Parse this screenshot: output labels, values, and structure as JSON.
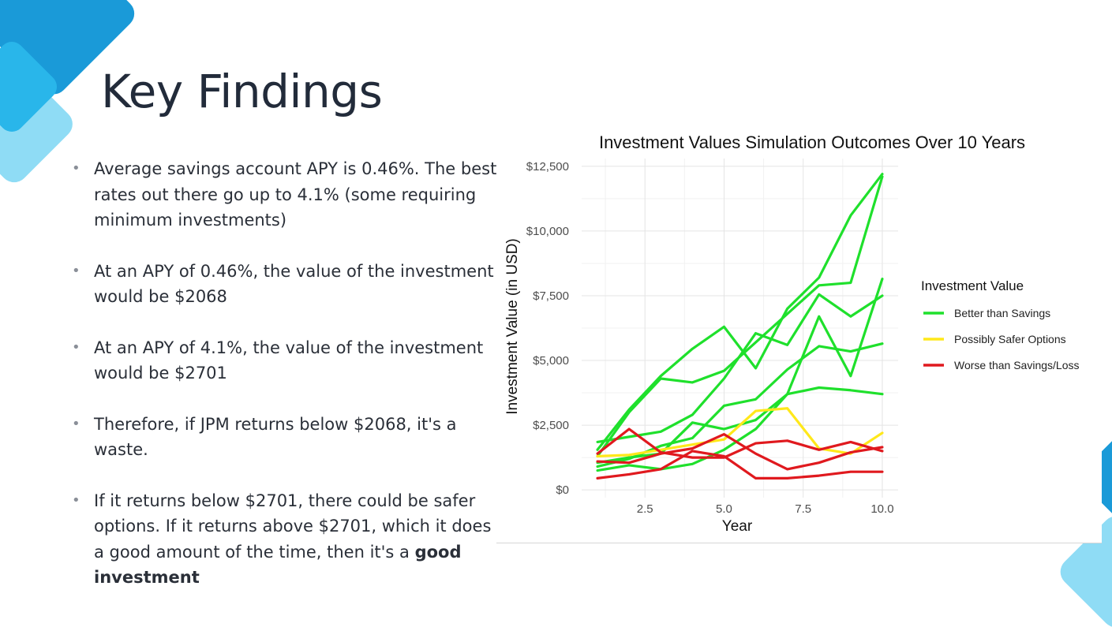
{
  "slide": {
    "title": "Key Findings",
    "bullets": [
      {
        "text": "Average savings account APY is 0.46%. The best rates out there go up to 4.1% (some requiring minimum investments)"
      },
      {
        "text": "At an APY of 0.46%, the value of the investment would be $2068"
      },
      {
        "text": "At an APY of 4.1%, the value of the investment would be $2701"
      },
      {
        "text": "Therefore, if JPM returns below $2068, it's a waste."
      },
      {
        "text": "If it returns below $2701, there could be safer options. If it returns above $2701, which it does a good amount of the time, then it's a ",
        "bold": "good investment"
      }
    ]
  },
  "colors": {
    "title": "#222b3a",
    "body_text": "#2a2f38",
    "accent_blue": "#1a9ad8",
    "accent_light_blue": "#8fdcf5"
  },
  "chart_data": {
    "type": "line",
    "title": "Investment Values Simulation Outcomes Over 10 Years",
    "xlabel": "Year",
    "ylabel": "Investment Value (in USD)",
    "xlim": [
      0.5,
      10.5
    ],
    "ylim": [
      -300,
      12800
    ],
    "x_ticks": [
      2.5,
      5.0,
      7.5,
      10.0
    ],
    "x_tick_labels": [
      "2.5",
      "5.0",
      "7.5",
      "10.0"
    ],
    "y_ticks": [
      0,
      2500,
      5000,
      7500,
      10000,
      12500
    ],
    "y_tick_labels": [
      "$0",
      "$2,500",
      "$5,000",
      "$7,500",
      "$10,000",
      "$12,500"
    ],
    "grid": true,
    "legend": {
      "title": "Investment Value",
      "placement": "right",
      "entries": [
        {
          "label": "Better than Savings",
          "color": "#1fe02c"
        },
        {
          "label": "Possibly Safer Options",
          "color": "#ffe81a"
        },
        {
          "label": "Worse than Savings/Loss",
          "color": "#e0191e"
        }
      ]
    },
    "x": [
      1,
      2,
      3,
      4,
      5,
      6,
      7,
      8,
      9,
      10
    ],
    "series": [
      {
        "group": "Better than Savings",
        "color": "#1fe02c",
        "values": [
          1300,
          3000,
          4300,
          4150,
          4600,
          5700,
          6800,
          7900,
          8000,
          12100
        ]
      },
      {
        "group": "Better than Savings",
        "color": "#1fe02c",
        "values": [
          1550,
          3100,
          4400,
          5450,
          6300,
          4700,
          7000,
          8200,
          10600,
          12200
        ]
      },
      {
        "group": "Better than Savings",
        "color": "#1fe02c",
        "values": [
          1850,
          2050,
          2250,
          2900,
          4300,
          6050,
          5600,
          7550,
          6700,
          7500
        ]
      },
      {
        "group": "Better than Savings",
        "color": "#1fe02c",
        "values": [
          900,
          1200,
          1700,
          2000,
          3250,
          3500,
          4650,
          5550,
          5350,
          5650
        ]
      },
      {
        "group": "Better than Savings",
        "color": "#1fe02c",
        "values": [
          1050,
          1250,
          1400,
          2600,
          2350,
          2700,
          3700,
          6700,
          4400,
          8150
        ]
      },
      {
        "group": "Better than Savings",
        "color": "#1fe02c",
        "values": [
          750,
          950,
          800,
          1000,
          1550,
          2350,
          3700,
          3950,
          3850,
          3700
        ]
      },
      {
        "group": "Possibly Safer Options",
        "color": "#ffe81a",
        "values": [
          1300,
          1350,
          1550,
          1750,
          1950,
          3050,
          3150,
          1600,
          1400,
          2200
        ]
      },
      {
        "group": "Worse than Savings/Loss",
        "color": "#e0191e",
        "values": [
          1400,
          2350,
          1450,
          1250,
          1250,
          1800,
          1900,
          1550,
          1850,
          1500
        ]
      },
      {
        "group": "Worse than Savings/Loss",
        "color": "#e0191e",
        "values": [
          1100,
          1050,
          1400,
          1600,
          2150,
          1400,
          800,
          1050,
          1450,
          1650
        ]
      },
      {
        "group": "Worse than Savings/Loss",
        "color": "#e0191e",
        "values": [
          450,
          600,
          800,
          1500,
          1300,
          450,
          450,
          550,
          700,
          700
        ]
      }
    ]
  }
}
